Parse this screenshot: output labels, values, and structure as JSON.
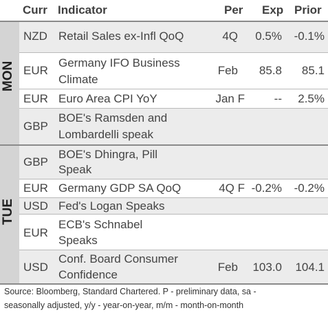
{
  "header": {
    "curr": "Curr",
    "indicator": "Indicator",
    "per": "Per",
    "exp": "Exp",
    "prior": "Prior"
  },
  "days": {
    "mon": "MON",
    "tue": "TUE"
  },
  "rows": [
    {
      "curr": "NZD",
      "ind1": "Retail Sales ex-Infl QoQ",
      "ind2": "",
      "per": "4Q",
      "exp": "0.5%",
      "prior": "-0.1%"
    },
    {
      "curr": "EUR",
      "ind1": "Germany IFO Business",
      "ind2": "Climate",
      "per": "Feb",
      "exp": "85.8",
      "prior": "85.1"
    },
    {
      "curr": "EUR",
      "ind1": "Euro Area CPI YoY",
      "ind2": "",
      "per": "Jan F",
      "exp": "--",
      "prior": "2.5%"
    },
    {
      "curr": "GBP",
      "ind1": "BOE's Ramsden and",
      "ind2": "Lombardelli speak",
      "per": "",
      "exp": "",
      "prior": ""
    },
    {
      "curr": "GBP",
      "ind1": "BOE's Dhingra, Pill",
      "ind2": "Speak",
      "per": "",
      "exp": "",
      "prior": ""
    },
    {
      "curr": "EUR",
      "ind1": "Germany GDP SA QoQ",
      "ind2": "",
      "per": "4Q F",
      "exp": "-0.2%",
      "prior": "-0.2%"
    },
    {
      "curr": "USD",
      "ind1": "Fed's Logan Speaks",
      "ind2": "",
      "per": "",
      "exp": "",
      "prior": ""
    },
    {
      "curr": "EUR",
      "ind1": "ECB's Schnabel",
      "ind2": "Speaks",
      "per": "",
      "exp": "",
      "prior": ""
    },
    {
      "curr": "USD",
      "ind1": "Conf. Board Consumer",
      "ind2": "Confidence",
      "per": "Feb",
      "exp": "103.0",
      "prior": "104.1"
    }
  ],
  "footnote": {
    "line1": "Source: Bloomberg, Standard Chartered. P - preliminary data, sa -",
    "line2": "seasonally adjusted, y/y - year-on-year, m/m - month-on-month"
  }
}
